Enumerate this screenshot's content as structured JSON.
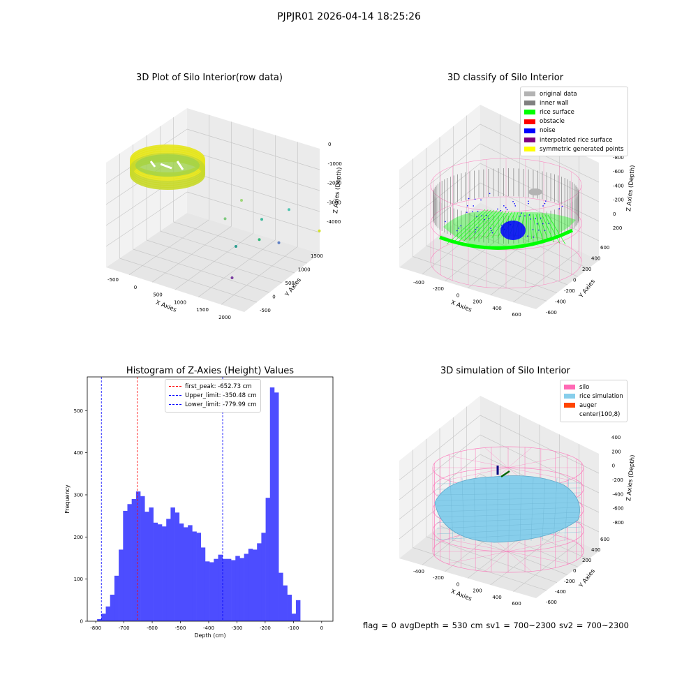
{
  "figure": {
    "suptitle": "PJPJR01 2026-04-14 18:25:26",
    "status_text": "flag = 0     avgDepth = 530 cm  sv1 = 700~2300  sv2 = 700~2300"
  },
  "colors": {
    "hist_bar": "#4d4dff",
    "first_peak_line": "#ff0000",
    "limit_line": "#0000ff",
    "silo": "#ff69b4",
    "rice_simulation": "#87ceeb",
    "auger": "#ff4500",
    "original_data": "#b3b3b3",
    "inner_wall": "#808080",
    "rice_surface": "#00ff00",
    "obstacle": "#ff0000",
    "noise": "#0000ff",
    "interpolated_rice_surface": "#800080",
    "symmetric_generated_points": "#ffff00"
  },
  "chart_data": [
    {
      "type": "scatter",
      "projection": "3d",
      "title": "3D Plot of Silo Interior(row data)",
      "xlabel": "X Axies",
      "ylabel": "Y Axies",
      "zlabel": "Z Axies (Depth)",
      "x_ticks": [
        "-500",
        "0",
        "500",
        "1000",
        "1500",
        "2000"
      ],
      "y_ticks": [
        "-500",
        "0",
        "500",
        "1000",
        "1500"
      ],
      "z_ticks": [
        "-4000",
        "-3000",
        "-2000",
        "-1000",
        "0"
      ],
      "outlier_points": [
        {
          "x": 600,
          "y": 300,
          "z": -2100,
          "color": "#7fc97f"
        },
        {
          "x": 700,
          "y": 600,
          "z": -1500,
          "color": "#9fd77a"
        },
        {
          "x": 900,
          "y": 800,
          "z": -2300,
          "color": "#3bb89a"
        },
        {
          "x": 1000,
          "y": 500,
          "z": -2800,
          "color": "#35b77a"
        },
        {
          "x": 1200,
          "y": 1000,
          "z": -1800,
          "color": "#4fc3b0"
        },
        {
          "x": 1500,
          "y": 1300,
          "z": -2700,
          "color": "#d3e22b"
        },
        {
          "x": 800,
          "y": 200,
          "z": -3000,
          "color": "#2a9d8f"
        },
        {
          "x": 1100,
          "y": 900,
          "z": -3200,
          "color": "#5e7fc4"
        },
        {
          "x": 700,
          "y": 300,
          "z": -4500,
          "color": "#7b3fa0"
        }
      ]
    },
    {
      "type": "scatter",
      "projection": "3d",
      "title": "3D classify of Silo Interior",
      "xlabel": "X Axies",
      "ylabel": "Y Axies",
      "zlabel": "Z Axies (Depth)",
      "x_ticks": [
        "-400",
        "-200",
        "0",
        "200",
        "400",
        "600"
      ],
      "y_ticks": [
        "-600",
        "-400",
        "-200",
        "0",
        "200",
        "400",
        "600"
      ],
      "z_ticks": [
        "-800",
        "-600",
        "-400",
        "-200",
        "0",
        "200"
      ],
      "legend": [
        {
          "label": "original data",
          "color": "#b3b3b3"
        },
        {
          "label": "inner wall",
          "color": "#808080"
        },
        {
          "label": "rice surface",
          "color": "#00ff00"
        },
        {
          "label": "obstacle",
          "color": "#ff0000"
        },
        {
          "label": "noise",
          "color": "#0000ff"
        },
        {
          "label": "interpolated rice surface",
          "color": "#800080"
        },
        {
          "label": "symmetric generated points",
          "color": "#ffff00"
        }
      ]
    },
    {
      "type": "bar",
      "title": "Histogram of Z-Axies (Height) Values",
      "xlabel": "Depth (cm)",
      "ylabel": "Frequency",
      "xlim": [
        -830,
        40
      ],
      "ylim": [
        0,
        580
      ],
      "x_ticks": [
        -800,
        -700,
        -600,
        -500,
        -400,
        -300,
        -200,
        -100,
        0
      ],
      "y_ticks": [
        0,
        100,
        200,
        300,
        400,
        500
      ],
      "bin_start": -795,
      "bin_width": 15.3,
      "values": [
        5,
        18,
        35,
        63,
        108,
        170,
        262,
        278,
        290,
        308,
        297,
        260,
        270,
        234,
        230,
        225,
        243,
        270,
        258,
        232,
        223,
        228,
        213,
        210,
        175,
        142,
        140,
        148,
        158,
        148,
        148,
        145,
        155,
        150,
        160,
        172,
        170,
        185,
        210,
        293,
        555,
        543,
        115,
        85,
        63,
        18,
        50
      ],
      "vlines": [
        {
          "label": "first_peak: -652.73 cm",
          "x": -652.73,
          "color": "#ff0000"
        },
        {
          "label": "Upper_limit: -350.48 cm",
          "x": -350.48,
          "color": "#0000ff"
        },
        {
          "label": "Lower_limit: -779.99 cm",
          "x": -779.99,
          "color": "#0000ff"
        }
      ],
      "legend_position": "upper center"
    },
    {
      "type": "surface",
      "projection": "3d",
      "title": "3D simulation of Silo Interior",
      "xlabel": "X Axies",
      "ylabel": "Y Axies",
      "zlabel": "Z Axies (Depth)",
      "x_ticks": [
        "-400",
        "-200",
        "0",
        "200",
        "400",
        "600"
      ],
      "y_ticks": [
        "-600",
        "-400",
        "-200",
        "0",
        "200",
        "400",
        "600"
      ],
      "z_ticks": [
        "-800",
        "-600",
        "-400",
        "-200",
        "0",
        "200",
        "400"
      ],
      "legend": [
        {
          "label": "silo",
          "color": "#ff69b4"
        },
        {
          "label": "rice simulation",
          "color": "#87ceeb"
        },
        {
          "label": "auger",
          "color": "#ff4500"
        },
        {
          "label": "center(100,8)",
          "color": "#ffffff"
        }
      ]
    }
  ]
}
